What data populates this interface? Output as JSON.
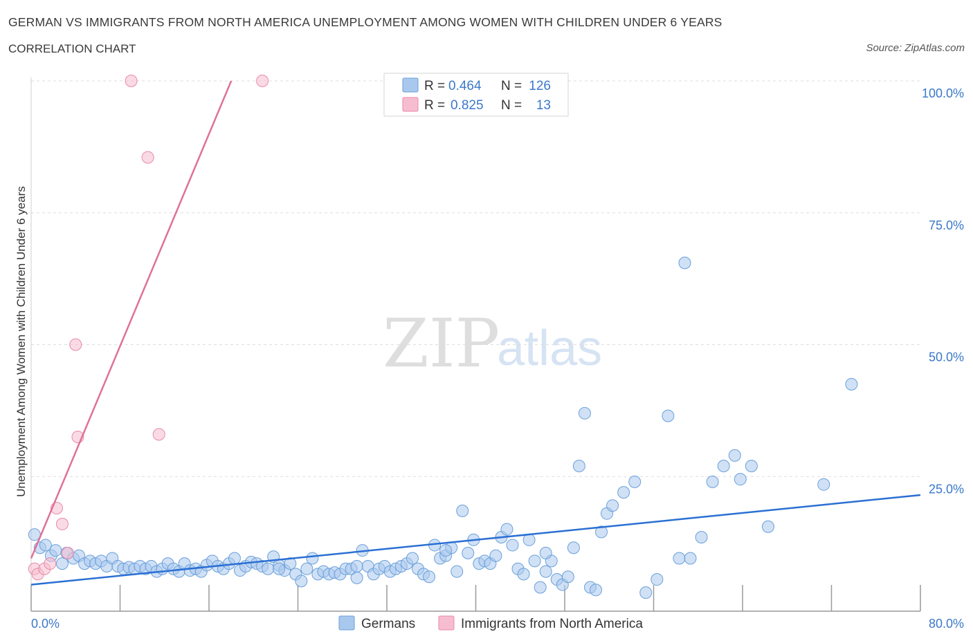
{
  "title": "GERMAN VS IMMIGRANTS FROM NORTH AMERICA UNEMPLOYMENT AMONG WOMEN WITH CHILDREN UNDER 6 YEARS",
  "subtitle": "CORRELATION CHART",
  "source": "Source: ZipAtlas.com",
  "watermark": {
    "zip": "ZIP",
    "atlas": "atlas"
  },
  "legend": {
    "rows": [
      {
        "r_label": "R =",
        "r_value": "0.464",
        "n_label": "N =",
        "n_value": "126"
      },
      {
        "r_label": "R =",
        "r_value": "0.825",
        "n_label": "N =",
        "n_value": "13"
      }
    ]
  },
  "colors": {
    "germans_fill": "#a9c8ee",
    "germans_stroke": "#6a9fd8",
    "germans_line": "#2a6fd4",
    "immigrants_fill": "#f6bdd0",
    "immigrants_stroke": "#e889a8",
    "immigrants_line": "#e0709a",
    "tick_text": "#3b78c9",
    "grid": "#dddddd"
  },
  "chart_data": {
    "type": "scatter",
    "title": "GERMAN VS IMMIGRANTS FROM NORTH AMERICA UNEMPLOYMENT AMONG WOMEN WITH CHILDREN UNDER 6 YEARS",
    "xlabel": "",
    "ylabel": "Unemployment Among Women with Children Under 6 years",
    "xlim": [
      0,
      80
    ],
    "ylim": [
      0,
      100
    ],
    "x_tick_labels": [
      "0.0%",
      "80.0%"
    ],
    "y_ticks": [
      25,
      50,
      75,
      100
    ],
    "y_tick_labels": [
      "25.0%",
      "50.0%",
      "75.0%",
      "100.0%"
    ],
    "grid": true,
    "series": [
      {
        "name": "Germans",
        "R": 0.464,
        "N": 126,
        "trend": {
          "x": [
            0,
            80
          ],
          "y": [
            4.5,
            21.5
          ]
        },
        "points": [
          [
            0.3,
            14
          ],
          [
            0.8,
            11.5
          ],
          [
            1.3,
            12
          ],
          [
            1.8,
            10
          ],
          [
            2.2,
            11
          ],
          [
            2.8,
            8.5
          ],
          [
            3.2,
            10.5
          ],
          [
            3.8,
            9.5
          ],
          [
            4.3,
            10
          ],
          [
            4.8,
            8.5
          ],
          [
            5.3,
            9
          ],
          [
            5.8,
            8.5
          ],
          [
            6.3,
            9
          ],
          [
            6.8,
            8
          ],
          [
            7.3,
            9.5
          ],
          [
            7.8,
            8
          ],
          [
            8.3,
            7.5
          ],
          [
            8.8,
            7.8
          ],
          [
            9.3,
            7.5
          ],
          [
            9.8,
            8
          ],
          [
            10.3,
            7.5
          ],
          [
            10.8,
            8
          ],
          [
            11.3,
            7
          ],
          [
            11.8,
            7.5
          ],
          [
            12.3,
            8.5
          ],
          [
            12.8,
            7.5
          ],
          [
            13.3,
            7
          ],
          [
            13.8,
            8.5
          ],
          [
            14.3,
            7.2
          ],
          [
            14.8,
            7.5
          ],
          [
            15.3,
            7
          ],
          [
            15.8,
            8.2
          ],
          [
            16.3,
            9
          ],
          [
            16.8,
            8
          ],
          [
            17.3,
            7.5
          ],
          [
            17.8,
            8.5
          ],
          [
            18.3,
            9.5
          ],
          [
            18.8,
            7.2
          ],
          [
            19.3,
            8
          ],
          [
            19.8,
            8.8
          ],
          [
            20.3,
            8.5
          ],
          [
            20.8,
            8
          ],
          [
            21.3,
            7.5
          ],
          [
            21.8,
            9.8
          ],
          [
            22.3,
            8.2
          ],
          [
            22.8,
            7.2
          ],
          [
            23.3,
            8.5
          ],
          [
            23.8,
            6.5
          ],
          [
            24.3,
            5.2
          ],
          [
            24.8,
            7.5
          ],
          [
            25.3,
            9.5
          ],
          [
            25.8,
            6.5
          ],
          [
            26.3,
            7
          ],
          [
            26.8,
            6.5
          ],
          [
            27.3,
            6.8
          ],
          [
            27.8,
            6.5
          ],
          [
            28.3,
            7.5
          ],
          [
            28.8,
            7.5
          ],
          [
            29.3,
            5.8
          ],
          [
            29.8,
            11
          ],
          [
            30.3,
            8
          ],
          [
            30.8,
            6.5
          ],
          [
            31.3,
            7.5
          ],
          [
            31.8,
            8
          ],
          [
            32.3,
            7
          ],
          [
            32.8,
            7.5
          ],
          [
            33.3,
            8
          ],
          [
            33.8,
            8.5
          ],
          [
            34.3,
            9.5
          ],
          [
            34.8,
            7.5
          ],
          [
            35.3,
            6.5
          ],
          [
            35.8,
            6
          ],
          [
            36.3,
            12
          ],
          [
            36.8,
            9.5
          ],
          [
            37.3,
            10
          ],
          [
            37.8,
            11.5
          ],
          [
            38.3,
            7
          ],
          [
            38.8,
            18.5
          ],
          [
            39.3,
            10.5
          ],
          [
            39.8,
            13
          ],
          [
            40.3,
            8.5
          ],
          [
            40.8,
            9
          ],
          [
            41.3,
            8.5
          ],
          [
            41.8,
            10
          ],
          [
            42.3,
            13.5
          ],
          [
            42.8,
            15
          ],
          [
            43.3,
            12
          ],
          [
            43.8,
            7.5
          ],
          [
            44.3,
            6.5
          ],
          [
            44.8,
            13
          ],
          [
            45.3,
            9
          ],
          [
            45.8,
            4
          ],
          [
            46.3,
            7
          ],
          [
            46.8,
            9
          ],
          [
            47.3,
            5.5
          ],
          [
            47.8,
            4.5
          ],
          [
            48.3,
            6
          ],
          [
            48.8,
            11.5
          ],
          [
            49.3,
            27
          ],
          [
            49.8,
            37
          ],
          [
            50.3,
            4
          ],
          [
            50.8,
            3.5
          ],
          [
            51.3,
            14.5
          ],
          [
            51.8,
            18
          ],
          [
            52.3,
            19.5
          ],
          [
            53.3,
            22
          ],
          [
            54.3,
            24
          ],
          [
            55.3,
            3
          ],
          [
            56.3,
            5.5
          ],
          [
            57.3,
            36.5
          ],
          [
            58.3,
            9.5
          ],
          [
            58.8,
            65.5
          ],
          [
            59.3,
            9.5
          ],
          [
            60.3,
            13.5
          ],
          [
            61.3,
            24
          ],
          [
            62.3,
            27
          ],
          [
            63.3,
            29
          ],
          [
            63.8,
            24.5
          ],
          [
            64.8,
            27
          ],
          [
            66.3,
            15.5
          ],
          [
            71.3,
            23.5
          ],
          [
            73.8,
            42.5
          ],
          [
            46.3,
            10.5
          ],
          [
            37.3,
            11
          ],
          [
            29.3,
            8
          ],
          [
            22.3,
            7.5
          ]
        ]
      },
      {
        "name": "Immigrants from North America",
        "R": 0.825,
        "N": 13,
        "trend": {
          "x": [
            0,
            18
          ],
          "y": [
            9.5,
            100
          ]
        },
        "points": [
          [
            0.3,
            7.5
          ],
          [
            0.6,
            6.5
          ],
          [
            1.2,
            7.5
          ],
          [
            1.7,
            8.5
          ],
          [
            2.3,
            19
          ],
          [
            2.8,
            16
          ],
          [
            3.3,
            10.5
          ],
          [
            4.0,
            50
          ],
          [
            4.2,
            32.5
          ],
          [
            9.0,
            100
          ],
          [
            10.5,
            85.5
          ],
          [
            11.5,
            33
          ],
          [
            20.8,
            100
          ]
        ]
      }
    ]
  }
}
